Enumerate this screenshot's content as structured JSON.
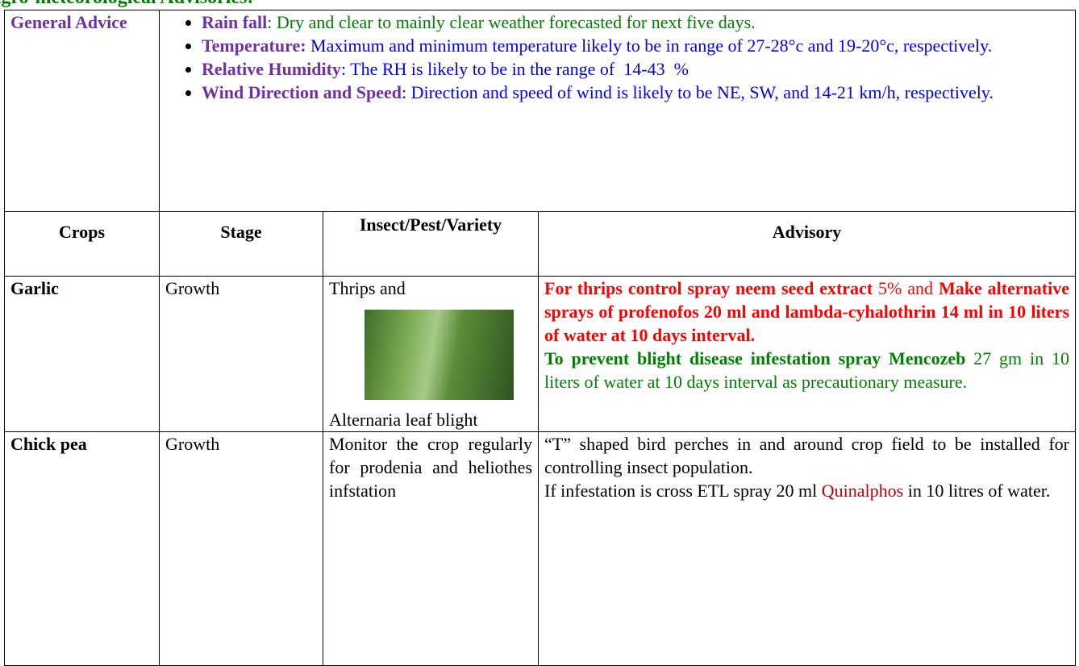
{
  "heading": "Agro-meteorological Advisories:",
  "general_advice": {
    "label": "General Advice",
    "items": [
      {
        "label": "Rain fall",
        "text": ": Dry and clear to mainly clear weather forecasted for next five days."
      },
      {
        "label": "Temperature:",
        "text": " Maximum and minimum temperature likely to be in range of 27-28°c and 19-20°c, respectively."
      },
      {
        "label": "Relative Humidity",
        "text": ": The RH is likely to be in the range of  14-43  %"
      },
      {
        "label": "Wind Direction and Speed",
        "text": ": Direction and speed of wind is likely to be NE, SW, and 14-21 km/h, respectively."
      }
    ]
  },
  "table": {
    "headers": [
      "Crops",
      "Stage",
      "Insect/Pest/Variety",
      "Advisory"
    ],
    "rows": [
      {
        "crop": "Garlic",
        "stage": "Growth",
        "pest": [
          "Thrips and",
          "Alternaria leaf blight"
        ],
        "advisory": [
          "For thrips control spray neem seed extract",
          " 5% and ",
          "Make alternative sprays of profenofos  20 ml and lambda-cyhalothrin 14 ml in 10 liters of water at 10 days interval.",
          "To prevent blight disease infestation spray Mencozeb",
          " 27 gm in 10 liters of water at 10 days interval as precautionary measure."
        ]
      },
      {
        "crop": "Chick pea",
        "stage": "Growth",
        "pest": [
          "Monitor the crop regularly for prodenia and heliothes infstation"
        ],
        "advisory": [
          "“T” shaped bird perches in and around crop field to be installed for controlling insect population.",
          "If infestation is cross ETL spray 20 ml ",
          "Quinalphos",
          " in 10 litres of water."
        ]
      }
    ]
  }
}
